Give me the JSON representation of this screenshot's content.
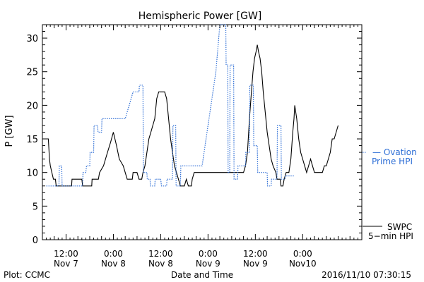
{
  "footer": {
    "left": "Plot: CCMC",
    "right": "2016/11/10 07:30:15"
  },
  "legend": {
    "ovation_line1": "— Ovation",
    "ovation_line2": "Prime HPI",
    "swpc_line1": "SWPC",
    "swpc_line2": "5−min HPI"
  },
  "colors": {
    "ovation": "#2f6fd6",
    "swpc": "#000000",
    "axis": "#000000"
  },
  "chart_data": {
    "type": "line",
    "title": "Hemispheric Power [GW]",
    "xlabel": "Date and Time",
    "ylabel": "P [GW]",
    "xlim": [
      0,
      81
    ],
    "ylim": [
      0,
      32
    ],
    "yticks": [
      0,
      5,
      10,
      15,
      20,
      25,
      30
    ],
    "xticks": [
      {
        "x": 6,
        "top": "12:00",
        "bottom": "Nov 7"
      },
      {
        "x": 18,
        "top": "0:00",
        "bottom": "Nov 8"
      },
      {
        "x": 30,
        "top": "12:00",
        "bottom": "Nov 8"
      },
      {
        "x": 42,
        "top": "0:00",
        "bottom": "Nov 9"
      },
      {
        "x": 54,
        "top": "12:00",
        "bottom": "Nov 9"
      },
      {
        "x": 66,
        "top": "0:00",
        "bottom": "Nov10"
      }
    ],
    "grid": false,
    "series": [
      {
        "name": "SWPC 5-min HPI",
        "color": "#000000",
        "style": "solid",
        "points": [
          [
            0,
            15
          ],
          [
            1.5,
            15
          ],
          [
            1.8,
            12
          ],
          [
            2,
            11
          ],
          [
            2.4,
            10
          ],
          [
            2.8,
            9
          ],
          [
            3.3,
            9
          ],
          [
            3.5,
            8
          ],
          [
            5.5,
            8
          ],
          [
            6,
            8
          ],
          [
            7.4,
            8
          ],
          [
            7.5,
            9
          ],
          [
            10,
            9
          ],
          [
            10.2,
            8
          ],
          [
            12.5,
            8
          ],
          [
            12.6,
            9
          ],
          [
            14.2,
            9
          ],
          [
            14.5,
            10
          ],
          [
            15.5,
            11
          ],
          [
            16.5,
            13
          ],
          [
            17.3,
            14.5
          ],
          [
            18,
            16
          ],
          [
            18.8,
            14
          ],
          [
            19.5,
            12
          ],
          [
            20.5,
            11
          ],
          [
            21,
            10
          ],
          [
            21.5,
            9
          ],
          [
            22.8,
            9
          ],
          [
            23,
            10
          ],
          [
            24,
            10
          ],
          [
            24.5,
            9
          ],
          [
            25.2,
            9
          ],
          [
            25.5,
            10
          ],
          [
            26,
            11
          ],
          [
            26.5,
            13
          ],
          [
            27,
            15
          ],
          [
            27.5,
            16
          ],
          [
            28,
            17
          ],
          [
            28.5,
            18
          ],
          [
            29,
            21
          ],
          [
            29.5,
            22
          ],
          [
            31,
            22
          ],
          [
            31.5,
            21
          ],
          [
            32,
            18
          ],
          [
            32.5,
            15
          ],
          [
            33,
            13
          ],
          [
            33.5,
            11
          ],
          [
            34,
            10
          ],
          [
            34.5,
            9
          ],
          [
            35,
            8
          ],
          [
            36,
            8
          ],
          [
            36.5,
            9
          ],
          [
            37,
            8
          ],
          [
            37.8,
            8
          ],
          [
            38,
            9
          ],
          [
            38.5,
            10
          ],
          [
            40,
            10
          ],
          [
            44,
            10
          ],
          [
            48,
            10
          ],
          [
            51,
            10
          ],
          [
            51.5,
            11
          ],
          [
            52,
            13
          ],
          [
            52.5,
            18
          ],
          [
            53,
            22
          ],
          [
            53.4,
            25
          ],
          [
            53.8,
            27
          ],
          [
            54.2,
            28
          ],
          [
            54.5,
            29
          ],
          [
            54.8,
            28
          ],
          [
            55.2,
            27
          ],
          [
            55.6,
            25
          ],
          [
            56,
            22
          ],
          [
            56.5,
            19
          ],
          [
            57,
            16
          ],
          [
            57.5,
            14
          ],
          [
            58,
            12
          ],
          [
            58.5,
            11
          ],
          [
            59.2,
            10
          ],
          [
            59.5,
            9
          ],
          [
            60.3,
            9
          ],
          [
            60.5,
            8
          ],
          [
            61,
            8
          ],
          [
            61.3,
            9
          ],
          [
            61.8,
            10
          ],
          [
            62.5,
            10
          ],
          [
            63,
            12
          ],
          [
            63.5,
            16
          ],
          [
            63.8,
            18
          ],
          [
            64,
            20
          ],
          [
            64.5,
            18
          ],
          [
            65,
            15
          ],
          [
            65.5,
            13
          ],
          [
            66,
            12
          ],
          [
            66.5,
            11
          ],
          [
            67,
            10
          ],
          [
            67.5,
            11
          ],
          [
            68,
            12
          ],
          [
            68.5,
            11
          ],
          [
            69,
            10
          ],
          [
            71,
            10
          ],
          [
            71.5,
            11
          ],
          [
            72,
            11
          ],
          [
            72.5,
            12
          ],
          [
            73,
            13
          ],
          [
            73.5,
            15
          ],
          [
            74,
            15
          ],
          [
            74.5,
            16
          ],
          [
            75,
            17
          ]
        ]
      },
      {
        "name": "Ovation Prime HPI",
        "color": "#2f6fd6",
        "style": "dotted",
        "points": [
          [
            1,
            8
          ],
          [
            4.2,
            8
          ],
          [
            4.3,
            11
          ],
          [
            4.9,
            11
          ],
          [
            5,
            8
          ],
          [
            10.2,
            8
          ],
          [
            10.3,
            10
          ],
          [
            11,
            10
          ],
          [
            11.2,
            11
          ],
          [
            12,
            11
          ],
          [
            12.1,
            13
          ],
          [
            13,
            13
          ],
          [
            13.1,
            17
          ],
          [
            14,
            17
          ],
          [
            14.1,
            16
          ],
          [
            15,
            16
          ],
          [
            15.1,
            18
          ],
          [
            21,
            18
          ],
          [
            22,
            20
          ],
          [
            23,
            22
          ],
          [
            24.5,
            22
          ],
          [
            24.6,
            23
          ],
          [
            25.5,
            23
          ],
          [
            25.6,
            10
          ],
          [
            26.5,
            10
          ],
          [
            26.6,
            9
          ],
          [
            27.3,
            9
          ],
          [
            27.4,
            8
          ],
          [
            28.5,
            8
          ],
          [
            28.6,
            9
          ],
          [
            30,
            9
          ],
          [
            30.2,
            8
          ],
          [
            31.5,
            8
          ],
          [
            31.6,
            9
          ],
          [
            33,
            9
          ],
          [
            33.1,
            17
          ],
          [
            33.8,
            17
          ],
          [
            33.9,
            8
          ],
          [
            35,
            8
          ],
          [
            35.1,
            11
          ],
          [
            38,
            11
          ],
          [
            40.5,
            11
          ],
          [
            44,
            25
          ],
          [
            45,
            32
          ],
          [
            46.5,
            32
          ],
          [
            46.6,
            26
          ],
          [
            47,
            26
          ],
          [
            47.1,
            10
          ],
          [
            47.5,
            10
          ],
          [
            47.6,
            26
          ],
          [
            48.5,
            26
          ],
          [
            48.6,
            9
          ],
          [
            49.5,
            9
          ],
          [
            49.6,
            11
          ],
          [
            51.5,
            11
          ],
          [
            51.6,
            13
          ],
          [
            52.5,
            13
          ],
          [
            52.6,
            23
          ],
          [
            53.5,
            23
          ],
          [
            53.6,
            14
          ],
          [
            54,
            14
          ],
          [
            54.5,
            14
          ],
          [
            54.6,
            10
          ],
          [
            57,
            10
          ],
          [
            57.1,
            8
          ],
          [
            58,
            8
          ],
          [
            58.1,
            9
          ],
          [
            59.5,
            9
          ],
          [
            59.6,
            17
          ],
          [
            60.5,
            17
          ],
          [
            60.6,
            9
          ],
          [
            61.5,
            9
          ],
          [
            61.6,
            9.5
          ],
          [
            63.5,
            9.5
          ],
          [
            64,
            9.5
          ]
        ]
      }
    ]
  }
}
